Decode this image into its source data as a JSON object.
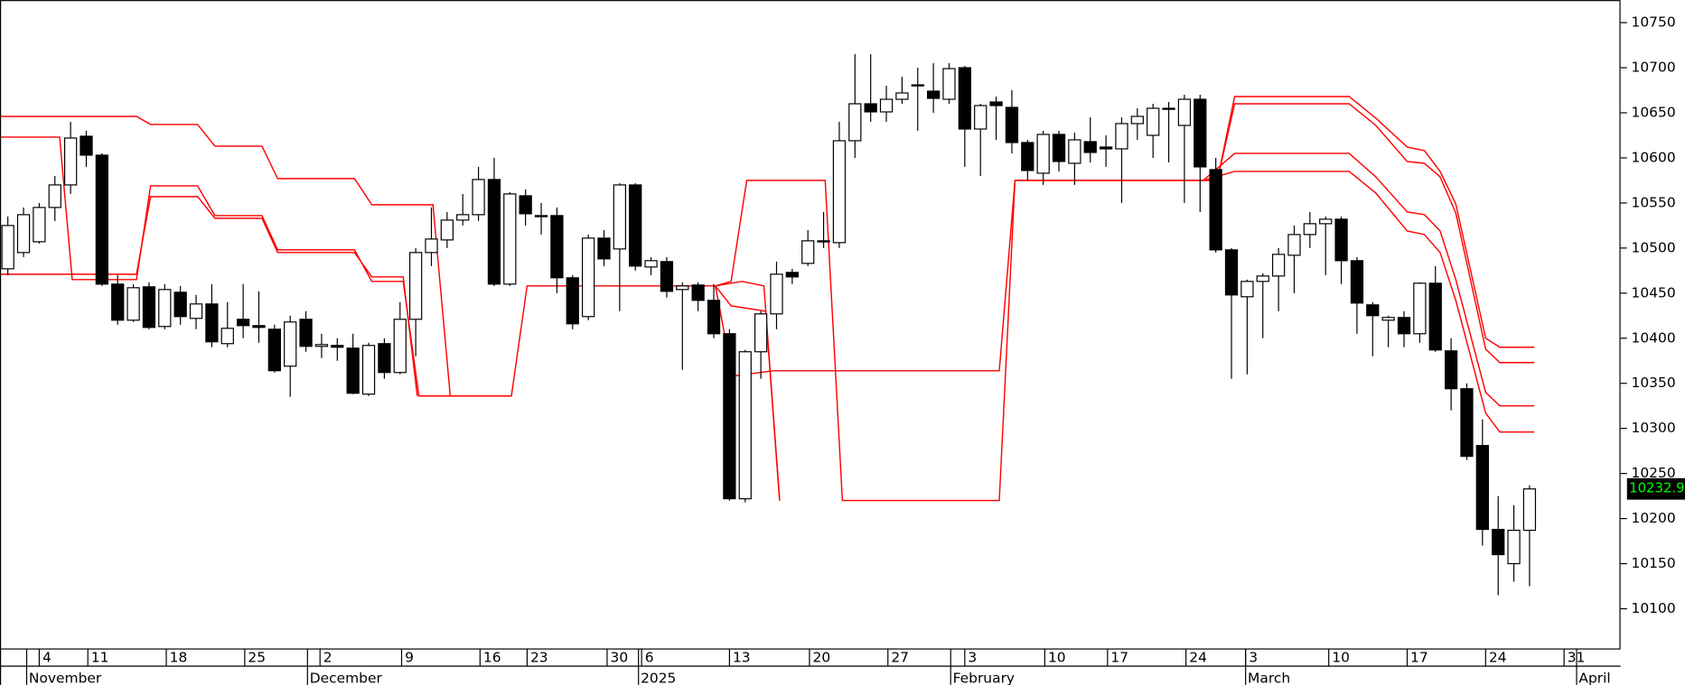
{
  "chart_data": {
    "type": "candlestick",
    "open": [
      10477,
      10495,
      10507,
      10545,
      10570,
      10624,
      10603,
      10460,
      10420,
      10457,
      10413,
      10451,
      10422,
      10438,
      10394,
      10421,
      10414,
      10410,
      10369,
      10421,
      10391,
      10392,
      10389,
      10338,
      10394,
      10362,
      10421,
      10495,
      10509,
      10531,
      10537,
      10576,
      10460,
      10558,
      10536,
      10536,
      10467,
      10424,
      10511,
      10499,
      10570,
      10479,
      10485,
      10454,
      10459,
      10442,
      10405,
      10222,
      10385,
      10427,
      10473,
      10483,
      10507,
      10506,
      10619,
      10660,
      10651,
      10665,
      10680,
      10674,
      10665,
      10700,
      10632,
      10662,
      10656,
      10617,
      10583,
      10626,
      10594,
      10618,
      10612,
      10610,
      10638,
      10625,
      10655,
      10636,
      10665,
      10587,
      10498,
      10446,
      10463,
      10469,
      10492,
      10515,
      10527,
      10532,
      10486,
      10437,
      10420,
      10423,
      10405,
      10461,
      10386,
      10344,
      10281,
      10188,
      10150,
      10187
    ],
    "high": [
      10535,
      10545,
      10550,
      10580,
      10640,
      10630,
      10605,
      10470,
      10460,
      10462,
      10460,
      10458,
      10448,
      10460,
      10440,
      10460,
      10452,
      10415,
      10425,
      10430,
      10405,
      10400,
      10405,
      10395,
      10400,
      10440,
      10500,
      10545,
      10540,
      10560,
      10590,
      10600,
      10562,
      10565,
      10550,
      10545,
      10470,
      10515,
      10520,
      10572,
      10572,
      10490,
      10490,
      10462,
      10462,
      10460,
      10410,
      10387,
      10430,
      10485,
      10477,
      10520,
      10540,
      10640,
      10715,
      10715,
      10680,
      10690,
      10700,
      10705,
      10705,
      10702,
      10660,
      10668,
      10675,
      10620,
      10630,
      10630,
      10628,
      10645,
      10625,
      10645,
      10655,
      10660,
      10662,
      10670,
      10670,
      10600,
      10500,
      10465,
      10472,
      10500,
      10525,
      10540,
      10535,
      10535,
      10490,
      10440,
      10425,
      10430,
      10462,
      10480,
      10400,
      10350,
      10310,
      10225,
      10215,
      10237
    ],
    "low": [
      10470,
      10490,
      10505,
      10530,
      10560,
      10590,
      10458,
      10415,
      10418,
      10410,
      10410,
      10415,
      10410,
      10390,
      10390,
      10400,
      10395,
      10362,
      10335,
      10385,
      10378,
      10375,
      10338,
      10336,
      10355,
      10360,
      10380,
      10480,
      10500,
      10525,
      10530,
      10458,
      10458,
      10525,
      10515,
      10450,
      10410,
      10420,
      10480,
      10430,
      10475,
      10470,
      10445,
      10365,
      10430,
      10400,
      10220,
      10218,
      10355,
      10410,
      10460,
      10480,
      10500,
      10500,
      10600,
      10640,
      10640,
      10660,
      10630,
      10650,
      10660,
      10590,
      10580,
      10620,
      10605,
      10575,
      10570,
      10585,
      10570,
      10595,
      10590,
      10550,
      10620,
      10600,
      10595,
      10550,
      10540,
      10495,
      10355,
      10360,
      10400,
      10430,
      10450,
      10500,
      10470,
      10460,
      10405,
      10380,
      10390,
      10390,
      10395,
      10385,
      10320,
      10265,
      10170,
      10115,
      10130,
      10125
    ],
    "close": [
      10525,
      10537,
      10545,
      10570,
      10622,
      10603,
      10460,
      10420,
      10456,
      10412,
      10454,
      10424,
      10438,
      10396,
      10411,
      10414,
      10412,
      10364,
      10418,
      10391,
      10393,
      10390,
      10339,
      10392,
      10362,
      10421,
      10495,
      10510,
      10531,
      10537,
      10576,
      10460,
      10560,
      10538,
      10535,
      10467,
      10416,
      10511,
      10488,
      10570,
      10480,
      10486,
      10452,
      10458,
      10442,
      10405,
      10222,
      10385,
      10427,
      10471,
      10468,
      10508,
      10508,
      10619,
      10660,
      10651,
      10665,
      10672,
      10681,
      10666,
      10699,
      10632,
      10658,
      10658,
      10617,
      10586,
      10626,
      10596,
      10620,
      10606,
      10610,
      10638,
      10646,
      10655,
      10654,
      10665,
      10590,
      10498,
      10448,
      10463,
      10469,
      10493,
      10515,
      10527,
      10532,
      10486,
      10439,
      10425,
      10423,
      10405,
      10461,
      10387,
      10344,
      10269,
      10188,
      10160,
      10187,
      10232.9
    ],
    "up_color": "#ffffff",
    "down_color": "#000000",
    "lines": [
      {
        "color": "#ff0000",
        "x": [
          -0.5,
          8.2,
          9.1,
          12.1,
          13.2,
          16.2,
          17.2,
          22.1,
          23.2,
          27.1,
          28.2,
          32.1,
          33.1,
          45.1,
          46.1,
          47.1,
          52.1,
          53.2,
          63.2,
          64.2,
          77.1,
          78.2,
          85.5,
          87.2,
          89.2,
          90.3,
          91.3,
          92.3,
          94.2,
          95.1,
          97.3
        ],
        "values": [
          10646,
          10646,
          10637,
          10637,
          10613,
          10613,
          10577,
          10577,
          10548,
          10548,
          10336,
          10336,
          10458,
          10458,
          10463,
          10575,
          10575,
          10220,
          10220,
          10575,
          10575,
          10668,
          10668,
          10644,
          10612,
          10608,
          10585,
          10549,
          10400,
          10390,
          10390
        ]
      },
      {
        "color": "#ff0000",
        "x": [
          -0.5,
          3.3,
          4.1,
          8.2,
          9.1,
          12.1,
          13.2,
          16.2,
          17.2,
          22.1,
          23.2,
          25.2,
          26.2,
          28.2,
          null,
          45.1,
          46.2,
          48.8,
          63.2,
          64.2,
          77.1,
          78.2,
          85.5,
          87.2,
          89.2,
          90.3,
          91.3,
          92.3,
          94.2,
          95.1,
          97.3
        ],
        "values": [
          10623,
          10623,
          10465,
          10465,
          10569,
          10569,
          10536,
          10536,
          10498,
          10498,
          10463,
          10463,
          10336,
          10336,
          null,
          10458,
          10358,
          10364,
          10364,
          10575,
          10575,
          10660,
          10660,
          10636,
          10596,
          10594,
          10579,
          10539,
          10388,
          10373,
          10373
        ]
      },
      {
        "color": "#ff0000",
        "x": [
          -0.5,
          8.2,
          9.1,
          12.1,
          13.2,
          16.2,
          17.2,
          22.1,
          23.2,
          25.2,
          26.1,
          null,
          45.1,
          46.8,
          48.2,
          49.2,
          null,
          76.2,
          78.2,
          85.5,
          87.2,
          89.2,
          90.3,
          91.3,
          92.3,
          94.2,
          95.1,
          97.3
        ],
        "values": [
          10471,
          10471,
          10557,
          10557,
          10533,
          10533,
          10495,
          10495,
          10468,
          10468,
          10336,
          null,
          10458,
          10463,
          10458,
          10220,
          null,
          10575,
          10605,
          10605,
          10579,
          10540,
          10537,
          10519,
          10465,
          10340,
          10325,
          10325
        ]
      },
      {
        "color": "#ff0000",
        "x": [
          45.1,
          46.1,
          48.3,
          49.2,
          null,
          76.2,
          78.2,
          85.5,
          87.2,
          89.2,
          90.3,
          91.3,
          92.3,
          94.2,
          95.1,
          97.3
        ],
        "values": [
          10458,
          10436,
          10430,
          10220,
          null,
          10575,
          10585,
          10585,
          10561,
          10519,
          10515,
          10495,
          10442,
          10317,
          10296,
          10296
        ]
      }
    ],
    "last_price": 10232.9,
    "xlim": [
      -0.5,
      102.8
    ],
    "ylim": [
      10056,
      10775
    ],
    "yticks": [
      10100,
      10150,
      10200,
      10250,
      10300,
      10350,
      10400,
      10450,
      10500,
      10550,
      10600,
      10650,
      10700,
      10750
    ],
    "xticks": [
      {
        "value": 2.0,
        "label": "4"
      },
      {
        "value": 5.1,
        "label": "11"
      },
      {
        "value": 10.1,
        "label": "18"
      },
      {
        "value": 15.1,
        "label": "25"
      },
      {
        "value": 19.9,
        "label": "2"
      },
      {
        "value": 25.1,
        "label": "9"
      },
      {
        "value": 30.1,
        "label": "16"
      },
      {
        "value": 33.1,
        "label": "23"
      },
      {
        "value": 38.2,
        "label": "30"
      },
      {
        "value": 40.4,
        "label": "6"
      },
      {
        "value": 46.0,
        "label": "13"
      },
      {
        "value": 51.1,
        "label": "20"
      },
      {
        "value": 56.1,
        "label": "27"
      },
      {
        "value": 61.0,
        "label": "3"
      },
      {
        "value": 66.1,
        "label": "10"
      },
      {
        "value": 70.1,
        "label": "17"
      },
      {
        "value": 75.1,
        "label": "24"
      },
      {
        "value": 78.9,
        "label": "3"
      },
      {
        "value": 84.2,
        "label": "10"
      },
      {
        "value": 89.2,
        "label": "17"
      },
      {
        "value": 94.2,
        "label": "24"
      },
      {
        "value": 99.2,
        "label": "31"
      }
    ],
    "months": [
      {
        "value": 1.2,
        "label": "November"
      },
      {
        "value": 19.1,
        "label": "December"
      },
      {
        "value": 40.2,
        "label": "2025"
      },
      {
        "value": 60.1,
        "label": "February"
      },
      {
        "value": 78.9,
        "label": "March"
      },
      {
        "value": 100.0,
        "label": "April"
      }
    ]
  }
}
